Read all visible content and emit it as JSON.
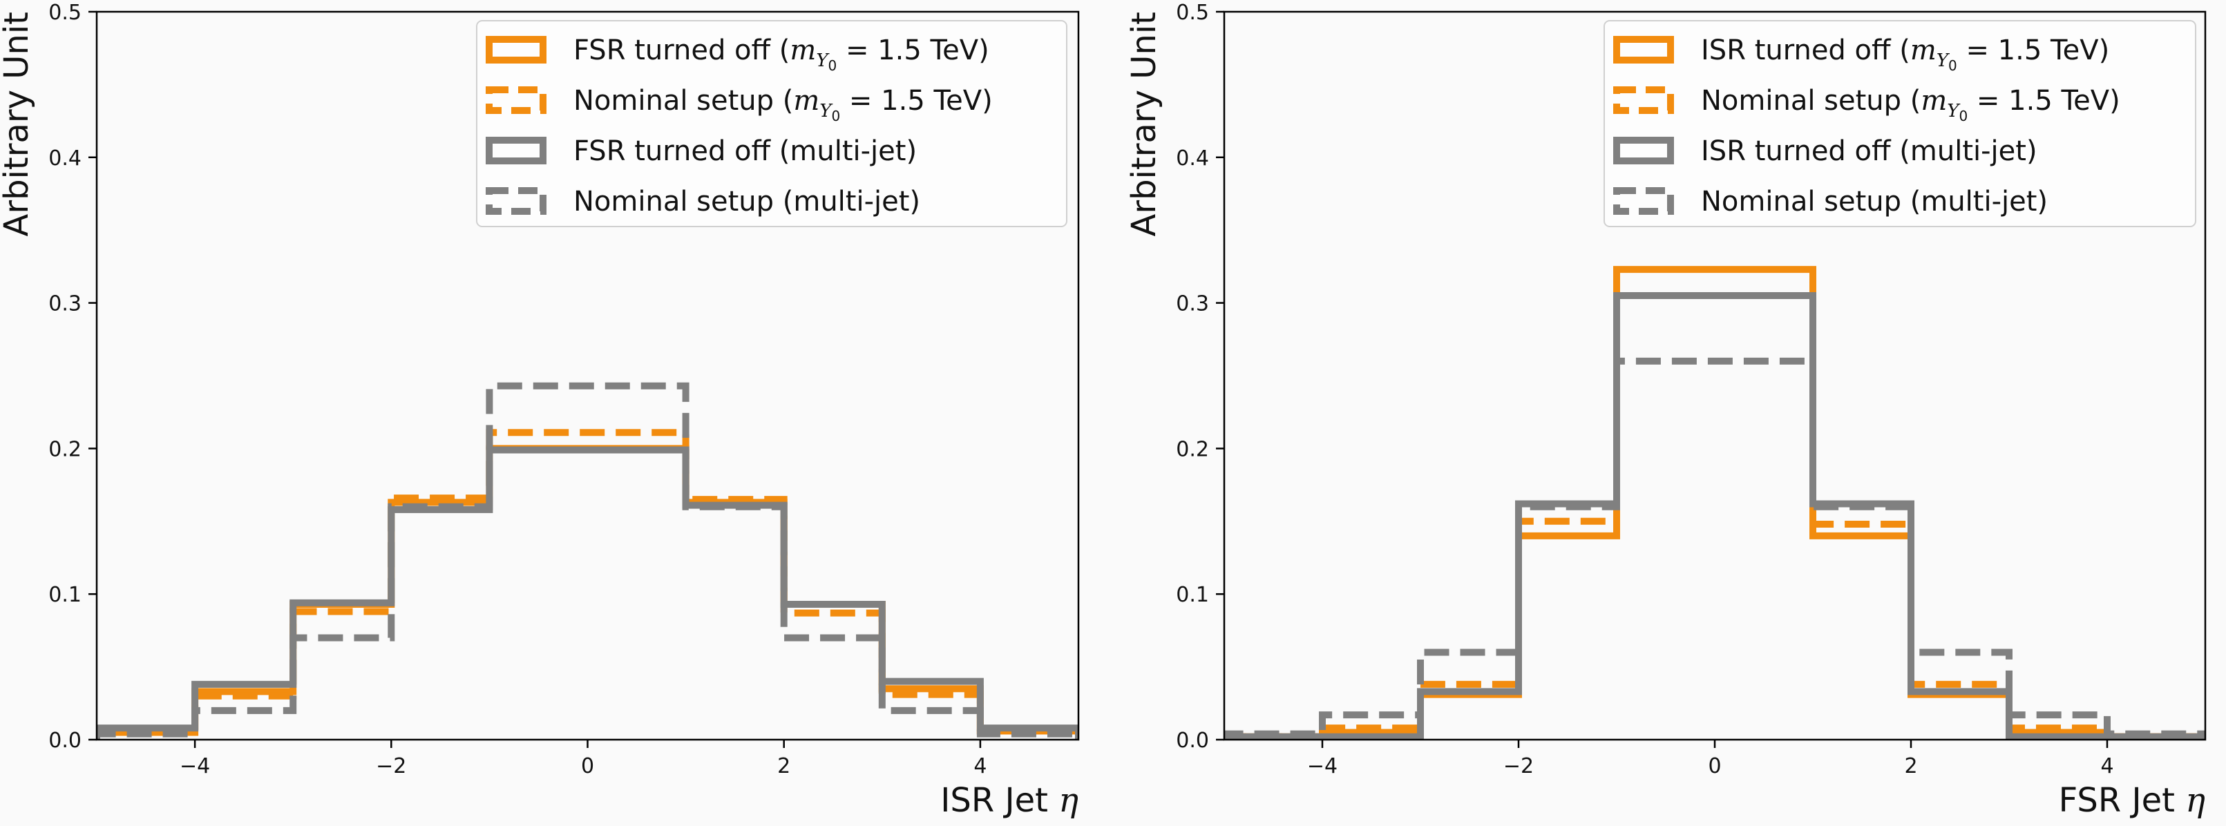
{
  "chart_data": [
    {
      "type": "line",
      "step": true,
      "xlabel_text": "ISR Jet ",
      "xlabel_symbol": "η",
      "ylabel": "Arbitrary Unit",
      "xlim": [
        -5,
        5
      ],
      "ylim": [
        0,
        0.5
      ],
      "bin_edges": [
        -5,
        -4,
        -3,
        -2,
        -1,
        1,
        2,
        3,
        4,
        5
      ],
      "x_ticks": [
        -4,
        -2,
        0,
        2,
        4
      ],
      "x_tick_labels": [
        "−4",
        "−2",
        "0",
        "2",
        "4"
      ],
      "y_ticks": [
        0,
        0.1,
        0.2,
        0.3,
        0.4,
        0.5
      ],
      "y_tick_labels": [
        "0.0",
        "0.1",
        "0.2",
        "0.3",
        "0.4",
        "0.5"
      ],
      "legend_position": "top-right",
      "grid": false,
      "series": [
        {
          "name": "FSR turned off (m_Y0 = 1.5 TeV)",
          "legend_prefix": "FSR turned off (",
          "color": "#f28c0f",
          "dashed": false,
          "values": [
            0.005,
            0.033,
            0.093,
            0.163,
            0.2,
            0.163,
            0.093,
            0.035,
            0.006
          ]
        },
        {
          "name": "Nominal setup (m_Y0 = 1.5 TeV)",
          "legend_prefix": "Nominal setup (",
          "color": "#f28c0f",
          "dashed": true,
          "values": [
            0.006,
            0.03,
            0.088,
            0.166,
            0.211,
            0.165,
            0.087,
            0.031,
            0.006
          ]
        },
        {
          "name": "FSR turned off (multi-jet)",
          "legend_text": "FSR turned off (multi-jet)",
          "color": "#808080",
          "dashed": false,
          "values": [
            0.008,
            0.038,
            0.094,
            0.158,
            0.199,
            0.161,
            0.093,
            0.04,
            0.008
          ]
        },
        {
          "name": "Nominal setup (multi-jet)",
          "legend_text": "Nominal setup (multi-jet)",
          "color": "#808080",
          "dashed": true,
          "values": [
            0.004,
            0.02,
            0.07,
            0.16,
            0.243,
            0.16,
            0.07,
            0.02,
            0.004
          ]
        }
      ]
    },
    {
      "type": "line",
      "step": true,
      "xlabel_text": "FSR Jet ",
      "xlabel_symbol": "η",
      "ylabel": "Arbitrary Unit",
      "xlim": [
        -5,
        5
      ],
      "ylim": [
        0,
        0.5
      ],
      "bin_edges": [
        -5,
        -4,
        -3,
        -2,
        -1,
        1,
        2,
        3,
        4,
        5
      ],
      "x_ticks": [
        -4,
        -2,
        0,
        2,
        4
      ],
      "x_tick_labels": [
        "−4",
        "−2",
        "0",
        "2",
        "4"
      ],
      "y_ticks": [
        0,
        0.1,
        0.2,
        0.3,
        0.4,
        0.5
      ],
      "y_tick_labels": [
        "0.0",
        "0.1",
        "0.2",
        "0.3",
        "0.4",
        "0.5"
      ],
      "legend_position": "top-right",
      "grid": false,
      "series": [
        {
          "name": "ISR turned off (m_Y0 = 1.5 TeV)",
          "legend_prefix": "ISR turned off (",
          "color": "#f28c0f",
          "dashed": false,
          "values": [
            0.002,
            0.005,
            0.031,
            0.14,
            0.323,
            0.14,
            0.031,
            0.005,
            0.002
          ]
        },
        {
          "name": "Nominal setup (m_Y0 = 1.5 TeV)",
          "legend_prefix": "Nominal setup (",
          "color": "#f28c0f",
          "dashed": true,
          "values": [
            0.002,
            0.008,
            0.038,
            0.15,
            0.305,
            0.148,
            0.038,
            0.008,
            0.002
          ]
        },
        {
          "name": "ISR turned off (multi-jet)",
          "legend_text": "ISR turned off (multi-jet)",
          "color": "#808080",
          "dashed": false,
          "values": [
            0.002,
            0.002,
            0.033,
            0.162,
            0.305,
            0.162,
            0.033,
            0.002,
            0.002
          ]
        },
        {
          "name": "Nominal setup (multi-jet)",
          "legend_text": "Nominal setup (multi-jet)",
          "color": "#808080",
          "dashed": true,
          "values": [
            0.004,
            0.017,
            0.06,
            0.16,
            0.26,
            0.16,
            0.06,
            0.017,
            0.004
          ]
        }
      ]
    }
  ],
  "legend_mass_suffix": " = 1.5 TeV)",
  "legend_mass_symbol": "m",
  "legend_mass_sub": "Y",
  "legend_mass_subsub": "0"
}
